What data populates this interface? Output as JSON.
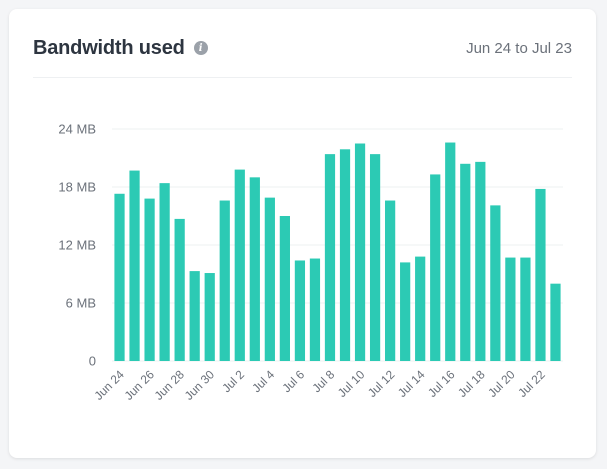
{
  "card": {
    "title": "Bandwidth used",
    "info_icon": "info-icon",
    "date_range": "Jun 24 to Jul 23"
  },
  "colors": {
    "bar": "#2ccab4",
    "grid": "#eef0f2"
  },
  "chart_data": {
    "type": "bar",
    "title": "Bandwidth used",
    "xlabel": "",
    "ylabel": "",
    "ylim": [
      0,
      24
    ],
    "y_ticks": [
      {
        "value": 0,
        "label": "0"
      },
      {
        "value": 6,
        "label": "6 MB"
      },
      {
        "value": 12,
        "label": "12 MB"
      },
      {
        "value": 18,
        "label": "18 MB"
      },
      {
        "value": 24,
        "label": "24 MB"
      }
    ],
    "grid": true,
    "categories": [
      "Jun 24",
      "Jun 25",
      "Jun 26",
      "Jun 27",
      "Jun 28",
      "Jun 29",
      "Jun 30",
      "Jul 1",
      "Jul 2",
      "Jul 3",
      "Jul 4",
      "Jul 5",
      "Jul 6",
      "Jul 7",
      "Jul 8",
      "Jul 9",
      "Jul 10",
      "Jul 11",
      "Jul 12",
      "Jul 13",
      "Jul 14",
      "Jul 15",
      "Jul 16",
      "Jul 17",
      "Jul 18",
      "Jul 19",
      "Jul 20",
      "Jul 21",
      "Jul 22",
      "Jul 23"
    ],
    "x_tick_labels": [
      "Jun 24",
      "Jun 26",
      "Jun 28",
      "Jun 30",
      "Jul 2",
      "Jul 4",
      "Jul 6",
      "Jul 8",
      "Jul 10",
      "Jul 12",
      "Jul 14",
      "Jul 16",
      "Jul 18",
      "Jul 20",
      "Jul 22"
    ],
    "values": [
      17.3,
      19.7,
      16.8,
      18.4,
      14.7,
      9.3,
      9.1,
      16.6,
      19.8,
      19.0,
      16.9,
      15.0,
      10.4,
      10.6,
      21.4,
      21.9,
      22.5,
      21.4,
      16.6,
      10.2,
      10.8,
      19.3,
      22.6,
      20.4,
      20.6,
      16.1,
      10.7,
      10.7,
      17.8,
      8.0
    ]
  }
}
